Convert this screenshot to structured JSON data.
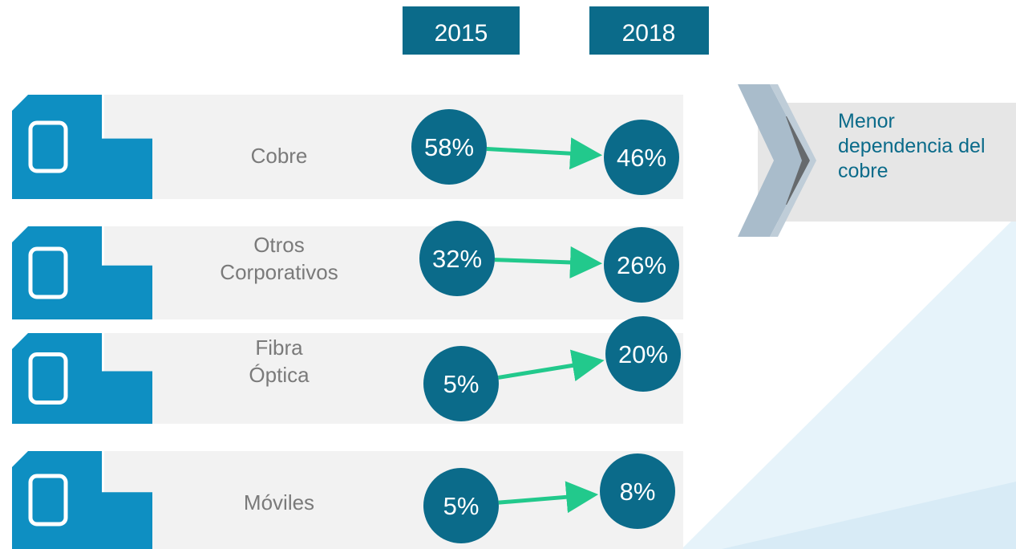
{
  "columns": [
    "2015",
    "2018"
  ],
  "rows": [
    {
      "label": "Cobre",
      "values": [
        "58%",
        "46%"
      ]
    },
    {
      "label": "Otros Corporativos",
      "values": [
        "32%",
        "26%"
      ]
    },
    {
      "label": "Fibra Óptica",
      "values": [
        "5%",
        "20%"
      ]
    },
    {
      "label": "Móviles",
      "values": [
        "5%",
        "8%"
      ]
    }
  ],
  "callout": "Menor dependencia del cobre"
}
